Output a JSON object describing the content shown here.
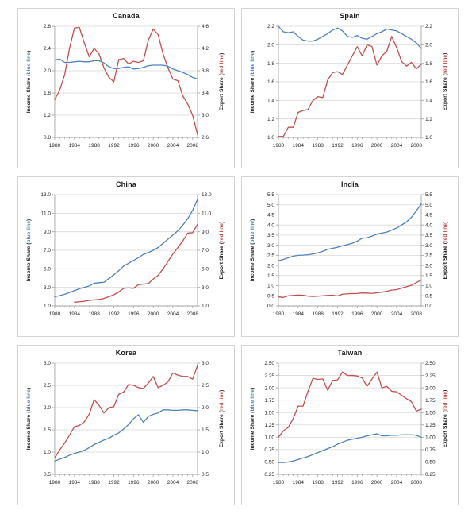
{
  "page": {
    "background": "#ffffff"
  },
  "colors": {
    "income_line": "#4f81bd",
    "export_line": "#c0504d",
    "gridline": "#d9d9d9",
    "axis_line": "#a6a6a6",
    "tick_text": "#262626",
    "panel_border": "#d4d4d4"
  },
  "axis_labels": {
    "left": {
      "pre": "Income Share (",
      "mid": "blue line",
      "post": ")"
    },
    "right": {
      "pre": "Export Share (",
      "mid": "red line",
      "post": ")"
    }
  },
  "chart_data": [
    {
      "type": "line",
      "title": "Canada",
      "x_start": 1980,
      "x_end": 2009,
      "x_ticks": [
        1980,
        1984,
        1988,
        1992,
        1996,
        2000,
        2004,
        2008
      ],
      "left_axis": {
        "min": 0.8,
        "max": 2.8,
        "step": 0.4,
        "decimals": 1
      },
      "right_axis": {
        "min": 2.6,
        "max": 4.6,
        "step": 0.4,
        "decimals": 1
      },
      "series": [
        {
          "name": "Income Share",
          "axis": "left",
          "color_key": "income_line",
          "values": [
            2.19,
            2.21,
            2.15,
            2.15,
            2.16,
            2.17,
            2.16,
            2.16,
            2.18,
            2.18,
            2.14,
            2.07,
            2.04,
            2.04,
            2.06,
            2.07,
            2.03,
            2.04,
            2.06,
            2.09,
            2.1,
            2.1,
            2.1,
            2.08,
            2.03,
            2.0,
            1.97,
            1.93,
            1.88,
            1.85
          ]
        },
        {
          "name": "Export Share",
          "axis": "right",
          "color_key": "export_line",
          "values": [
            3.28,
            3.45,
            3.72,
            4.2,
            4.57,
            4.58,
            4.3,
            4.05,
            4.2,
            4.1,
            3.85,
            3.68,
            3.6,
            4.0,
            4.02,
            3.92,
            3.97,
            3.95,
            3.98,
            4.35,
            4.55,
            4.45,
            4.1,
            3.85,
            3.65,
            3.62,
            3.35,
            3.2,
            3.0,
            2.65
          ]
        }
      ]
    },
    {
      "type": "line",
      "title": "Spain",
      "x_start": 1980,
      "x_end": 2009,
      "x_ticks": [
        1980,
        1984,
        1988,
        1992,
        1996,
        2000,
        2004,
        2008
      ],
      "left_axis": {
        "min": 1.0,
        "max": 2.2,
        "step": 0.2,
        "decimals": 1
      },
      "right_axis": {
        "min": 1.0,
        "max": 2.2,
        "step": 0.2,
        "decimals": 1
      },
      "series": [
        {
          "name": "Income Share",
          "axis": "left",
          "color_key": "income_line",
          "values": [
            2.2,
            2.14,
            2.13,
            2.14,
            2.09,
            2.05,
            2.04,
            2.04,
            2.06,
            2.09,
            2.12,
            2.16,
            2.18,
            2.15,
            2.09,
            2.08,
            2.1,
            2.07,
            2.06,
            2.09,
            2.12,
            2.14,
            2.17,
            2.16,
            2.15,
            2.12,
            2.09,
            2.06,
            2.02,
            1.96
          ]
        },
        {
          "name": "Export Share",
          "axis": "right",
          "color_key": "export_line",
          "values": [
            1.01,
            1.01,
            1.11,
            1.11,
            1.27,
            1.29,
            1.3,
            1.4,
            1.44,
            1.43,
            1.62,
            1.7,
            1.71,
            1.68,
            1.78,
            1.88,
            1.98,
            1.88,
            2.0,
            1.98,
            1.78,
            1.88,
            1.93,
            2.09,
            1.97,
            1.82,
            1.77,
            1.81,
            1.74,
            1.79
          ]
        }
      ]
    },
    {
      "type": "line",
      "title": "China",
      "x_start": 1980,
      "x_end": 2009,
      "x_ticks": [
        1980,
        1984,
        1988,
        1992,
        1996,
        2000,
        2004,
        2008
      ],
      "left_axis": {
        "min": 1.0,
        "max": 13.0,
        "step": 2.0,
        "decimals": 1
      },
      "right_axis": {
        "min": 1.0,
        "max": 13.0,
        "step": 2.0,
        "decimals": 1
      },
      "series": [
        {
          "name": "Income Share",
          "axis": "left",
          "color_key": "income_line",
          "values": [
            2.0,
            2.1,
            2.25,
            2.45,
            2.65,
            2.85,
            3.0,
            3.15,
            3.45,
            3.5,
            3.55,
            3.95,
            4.35,
            4.8,
            5.3,
            5.6,
            5.9,
            6.2,
            6.55,
            6.75,
            7.0,
            7.3,
            7.75,
            8.2,
            8.65,
            9.1,
            9.7,
            10.4,
            11.3,
            12.5
          ]
        },
        {
          "name": "Export Share",
          "axis": "right",
          "color_key": "export_line",
          "values": [
            null,
            null,
            null,
            null,
            1.4,
            1.45,
            1.5,
            1.6,
            1.65,
            1.7,
            1.8,
            2.0,
            2.2,
            2.5,
            2.9,
            2.95,
            2.9,
            3.3,
            3.35,
            3.4,
            3.9,
            4.3,
            5.0,
            5.8,
            6.6,
            7.3,
            8.0,
            8.85,
            8.9,
            9.8
          ]
        }
      ]
    },
    {
      "type": "line",
      "title": "India",
      "x_start": 1980,
      "x_end": 2009,
      "x_ticks": [
        1980,
        1984,
        1988,
        1992,
        1996,
        2000,
        2004,
        2008
      ],
      "left_axis": {
        "min": 0.0,
        "max": 5.5,
        "step": 0.5,
        "decimals": 1
      },
      "right_axis": {
        "min": 0.0,
        "max": 5.5,
        "step": 0.5,
        "decimals": 1
      },
      "series": [
        {
          "name": "Income Share",
          "axis": "left",
          "color_key": "income_line",
          "values": [
            2.23,
            2.3,
            2.38,
            2.46,
            2.5,
            2.51,
            2.53,
            2.57,
            2.62,
            2.7,
            2.8,
            2.85,
            2.9,
            2.97,
            3.03,
            3.1,
            3.2,
            3.35,
            3.37,
            3.45,
            3.55,
            3.6,
            3.65,
            3.75,
            3.85,
            4.0,
            4.15,
            4.38,
            4.7,
            5.05
          ]
        },
        {
          "name": "Export Share",
          "axis": "right",
          "color_key": "export_line",
          "values": [
            0.45,
            0.42,
            0.5,
            0.52,
            0.54,
            0.53,
            0.48,
            0.47,
            0.48,
            0.5,
            0.52,
            0.53,
            0.49,
            0.58,
            0.6,
            0.61,
            0.62,
            0.64,
            0.63,
            0.62,
            0.65,
            0.68,
            0.72,
            0.78,
            0.8,
            0.88,
            0.95,
            1.02,
            1.15,
            1.28
          ]
        }
      ]
    },
    {
      "type": "line",
      "title": "Korea",
      "x_start": 1980,
      "x_end": 2009,
      "x_ticks": [
        1980,
        1984,
        1988,
        1992,
        1996,
        2000,
        2004,
        2008
      ],
      "left_axis": {
        "min": 0.5,
        "max": 3.0,
        "step": 0.5,
        "decimals": 1
      },
      "right_axis": {
        "min": 0.5,
        "max": 3.0,
        "step": 0.5,
        "decimals": 1
      },
      "series": [
        {
          "name": "Income Share",
          "axis": "left",
          "color_key": "income_line",
          "values": [
            0.8,
            0.84,
            0.88,
            0.93,
            0.97,
            1.0,
            1.04,
            1.1,
            1.17,
            1.22,
            1.27,
            1.31,
            1.38,
            1.43,
            1.52,
            1.62,
            1.75,
            1.84,
            1.67,
            1.8,
            1.85,
            1.88,
            1.95,
            1.95,
            1.94,
            1.94,
            1.95,
            1.95,
            1.94,
            1.93
          ]
        },
        {
          "name": "Export Share",
          "axis": "right",
          "color_key": "export_line",
          "values": [
            0.87,
            1.05,
            1.2,
            1.38,
            1.57,
            1.6,
            1.68,
            1.85,
            2.18,
            2.05,
            1.88,
            2.0,
            2.02,
            2.3,
            2.35,
            2.52,
            2.5,
            2.45,
            2.43,
            2.55,
            2.7,
            2.45,
            2.5,
            2.58,
            2.78,
            2.73,
            2.7,
            2.7,
            2.64,
            2.95
          ]
        }
      ]
    },
    {
      "type": "line",
      "title": "Taiwan",
      "x_start": 1980,
      "x_end": 2009,
      "x_ticks": [
        1980,
        1984,
        1988,
        1992,
        1996,
        2000,
        2004,
        2008
      ],
      "left_axis": {
        "min": 0.25,
        "max": 2.5,
        "step": 0.25,
        "decimals": 2
      },
      "right_axis": {
        "min": 0.25,
        "max": 2.5,
        "step": 0.25,
        "decimals": 2
      },
      "series": [
        {
          "name": "Income Share",
          "axis": "left",
          "color_key": "income_line",
          "values": [
            0.49,
            0.49,
            0.5,
            0.52,
            0.55,
            0.58,
            0.61,
            0.65,
            0.69,
            0.73,
            0.77,
            0.81,
            0.86,
            0.9,
            0.94,
            0.96,
            0.98,
            1.0,
            1.03,
            1.05,
            1.07,
            1.03,
            1.03,
            1.04,
            1.04,
            1.05,
            1.05,
            1.05,
            1.04,
            1.0
          ]
        },
        {
          "name": "Export Share",
          "axis": "right",
          "color_key": "export_line",
          "values": [
            1.0,
            1.13,
            1.2,
            1.38,
            1.63,
            1.63,
            1.93,
            2.19,
            2.17,
            2.18,
            1.95,
            2.15,
            2.16,
            2.32,
            2.25,
            2.25,
            2.24,
            2.2,
            2.03,
            2.18,
            2.32,
            2.0,
            2.03,
            1.93,
            1.92,
            1.85,
            1.78,
            1.72,
            1.53,
            1.57
          ]
        }
      ]
    }
  ]
}
